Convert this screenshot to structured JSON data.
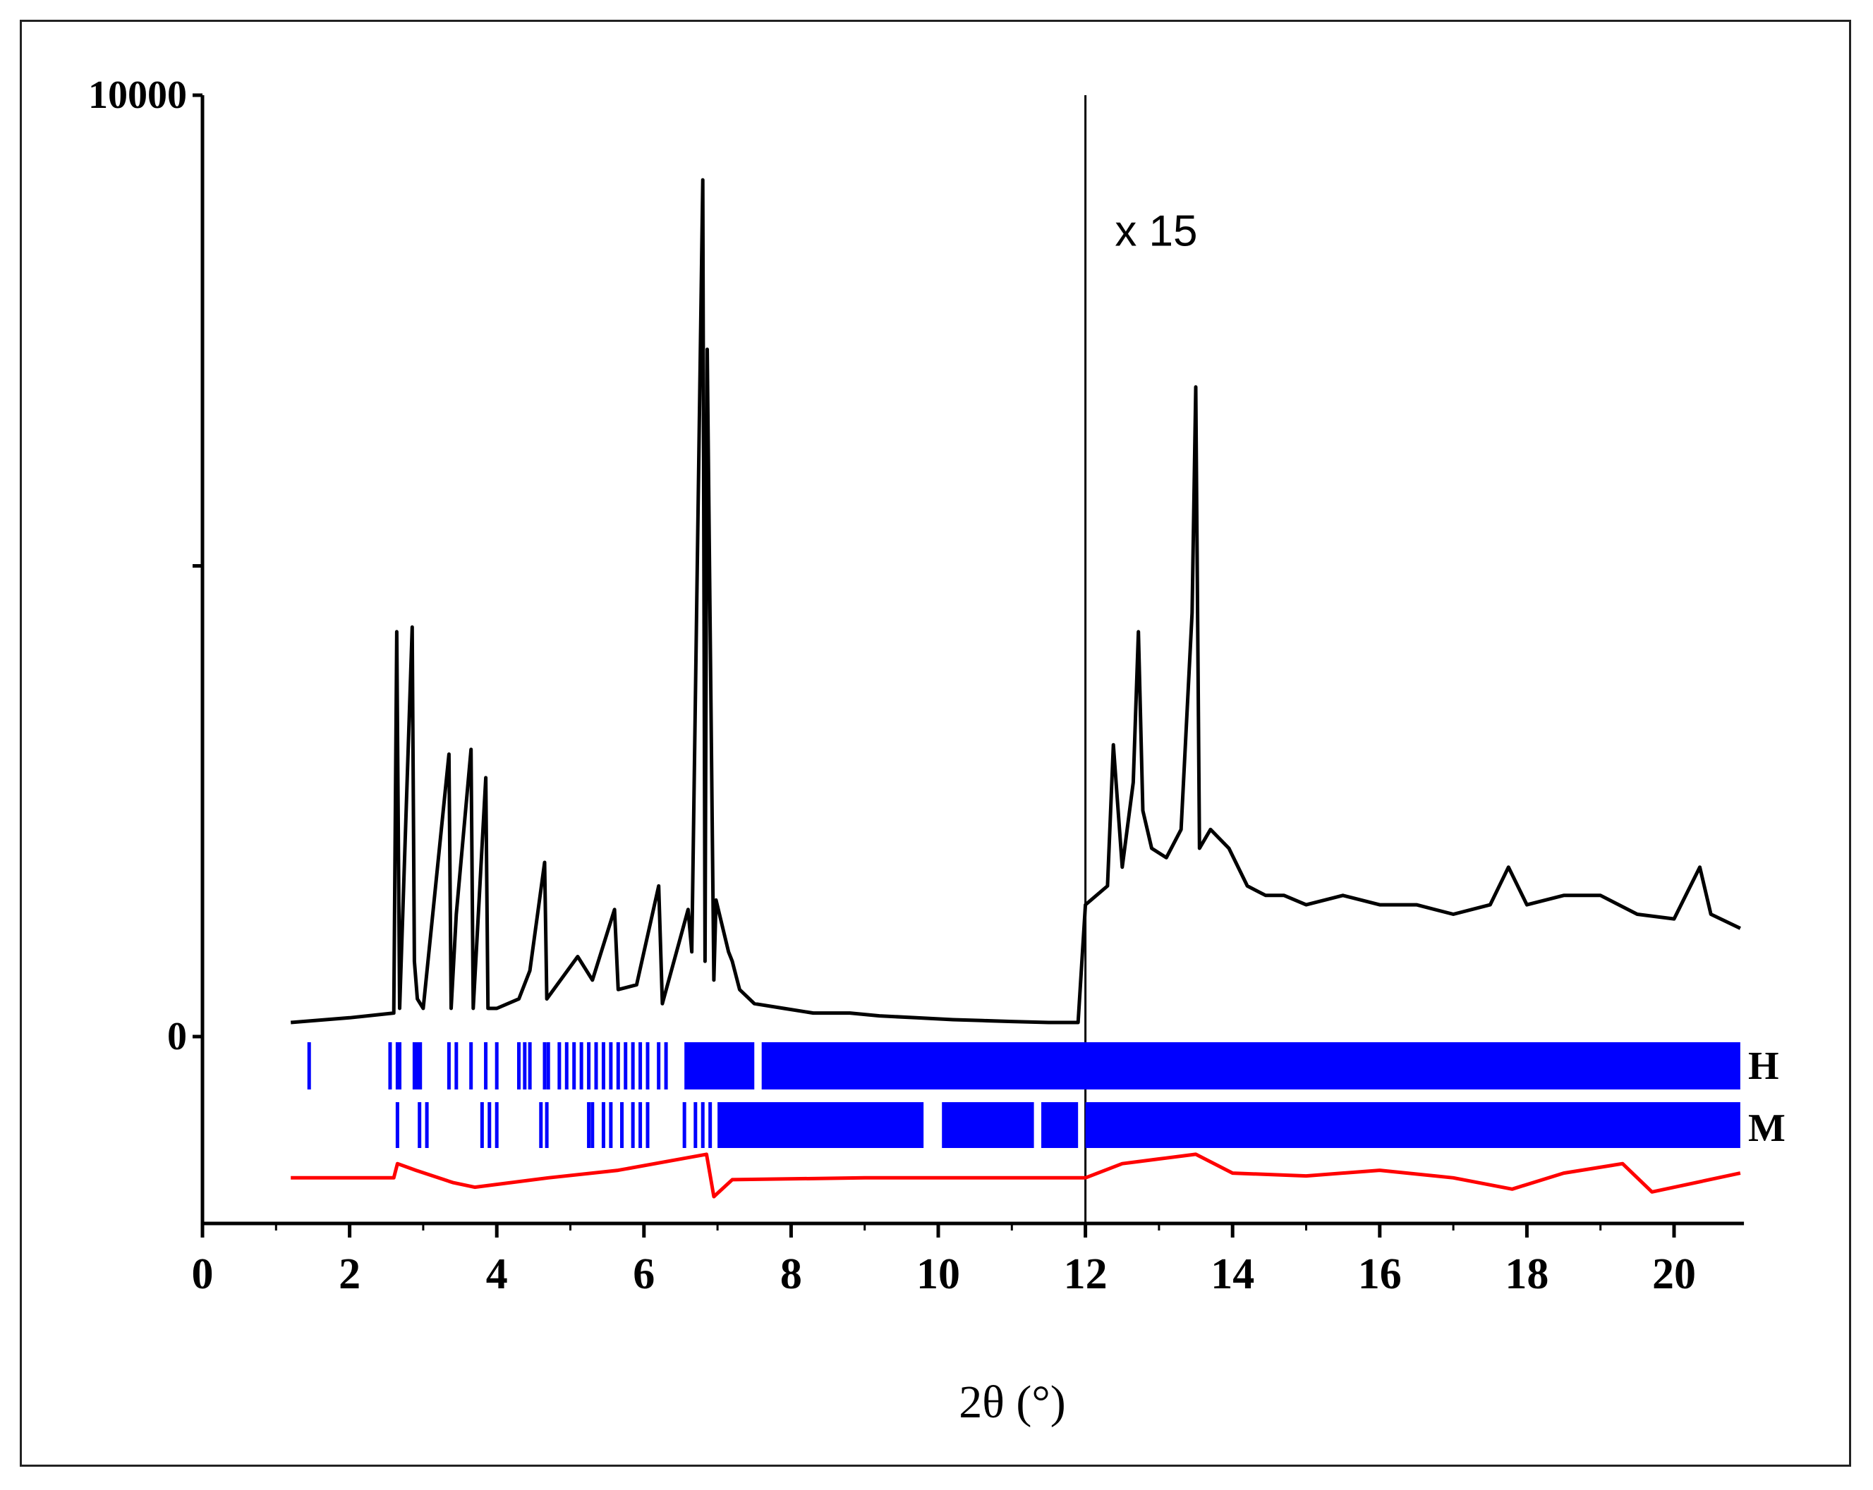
{
  "chart_data": {
    "type": "line",
    "xlabel": "2θ (°)",
    "ylabel": "",
    "xlim": [
      0,
      21
    ],
    "ylim": [
      -2000,
      10000
    ],
    "x_ticks": [
      "0",
      "2",
      "4",
      "6",
      "8",
      "10",
      "12",
      "14",
      "16",
      "18",
      "20"
    ],
    "y_ticks": [
      "0",
      "10000"
    ],
    "divider_x": 12,
    "annotations": [
      {
        "text": "x 15",
        "x": 12.4,
        "y": 8400
      }
    ],
    "series": [
      {
        "role": "observed",
        "color": "#000000",
        "x": [
          1.2,
          2.0,
          2.6,
          2.64,
          2.68,
          2.85,
          2.88,
          2.92,
          3.0,
          3.35,
          3.38,
          3.45,
          3.65,
          3.68,
          3.85,
          3.88,
          4.0,
          4.3,
          4.45,
          4.65,
          4.68,
          5.1,
          5.3,
          5.6,
          5.65,
          5.9,
          6.2,
          6.25,
          6.6,
          6.65,
          6.8,
          6.83,
          6.86,
          6.95,
          6.98,
          7.15,
          7.2,
          7.3,
          7.5,
          7.9,
          8.3,
          8.8,
          9.2,
          9.7,
          10.2,
          10.6,
          11.0,
          11.5,
          11.9,
          12.0,
          12.3,
          12.38,
          12.5,
          12.65,
          12.72,
          12.78,
          12.9,
          13.1,
          13.3,
          13.45,
          13.5,
          13.55,
          13.7,
          13.95,
          14.2,
          14.45,
          14.7,
          15.0,
          15.5,
          16.0,
          16.5,
          17.0,
          17.5,
          17.75,
          18.0,
          18.5,
          19.0,
          19.5,
          20.0,
          20.35,
          20.5,
          20.9
        ],
        "y": [
          150,
          200,
          250,
          4300,
          300,
          4350,
          800,
          400,
          300,
          3000,
          300,
          1300,
          3050,
          300,
          2750,
          300,
          300,
          400,
          700,
          1850,
          400,
          850,
          600,
          1350,
          500,
          550,
          1600,
          350,
          1350,
          900,
          9100,
          800,
          7300,
          600,
          1450,
          900,
          800,
          500,
          350,
          300,
          250,
          250,
          220,
          200,
          180,
          170,
          160,
          150,
          150,
          1400,
          1600,
          3100,
          1800,
          2700,
          4300,
          2400,
          2000,
          1900,
          2200,
          4500,
          6900,
          2000,
          2200,
          2000,
          1600,
          1500,
          1500,
          1400,
          1500,
          1400,
          1400,
          1300,
          1400,
          1800,
          1400,
          1500,
          1500,
          1300,
          1250,
          1800,
          1300,
          1150
        ]
      },
      {
        "role": "difference",
        "color": "#ff0000",
        "x": [
          1.2,
          2.6,
          2.65,
          2.9,
          3.4,
          3.7,
          4.7,
          5.65,
          6.85,
          6.95,
          7.2,
          9.0,
          12.0,
          12.5,
          13.0,
          13.5,
          14.0,
          15.0,
          16.0,
          17.0,
          17.8,
          18.5,
          19.3,
          19.7,
          20.9
        ],
        "y": [
          -1500,
          -1500,
          -1350,
          -1420,
          -1550,
          -1600,
          -1500,
          -1420,
          -1250,
          -1700,
          -1520,
          -1500,
          -1500,
          -1350,
          -1300,
          -1250,
          -1450,
          -1480,
          -1420,
          -1500,
          -1620,
          -1450,
          -1350,
          -1650,
          -1450
        ]
      }
    ],
    "reflection_rows": [
      {
        "name": "H",
        "color": "#0000ff",
        "positions": [
          1.45,
          2.55,
          2.65,
          2.68,
          2.88,
          2.92,
          2.96,
          3.35,
          3.45,
          3.65,
          3.85,
          4.0,
          4.3,
          4.38,
          4.45,
          4.65,
          4.7,
          4.85,
          4.95,
          5.05,
          5.15,
          5.25,
          5.35,
          5.45,
          5.55,
          5.65,
          5.75,
          5.85,
          5.95,
          6.05,
          6.2,
          6.3
        ],
        "dense_ranges": [
          [
            6.55,
            7.5
          ],
          [
            7.6,
            20.9
          ]
        ]
      },
      {
        "name": "M",
        "color": "#0000ff",
        "positions": [
          2.65,
          2.95,
          3.05,
          3.8,
          3.9,
          4.0,
          4.6,
          4.68,
          5.25,
          5.3,
          5.45,
          5.55,
          5.7,
          5.85,
          5.95,
          6.05,
          6.55,
          6.7,
          6.8,
          6.9
        ],
        "dense_ranges": [
          [
            7.0,
            9.8
          ],
          [
            10.05,
            11.3
          ],
          [
            11.4,
            11.9
          ],
          [
            12.0,
            20.9
          ]
        ]
      }
    ]
  }
}
